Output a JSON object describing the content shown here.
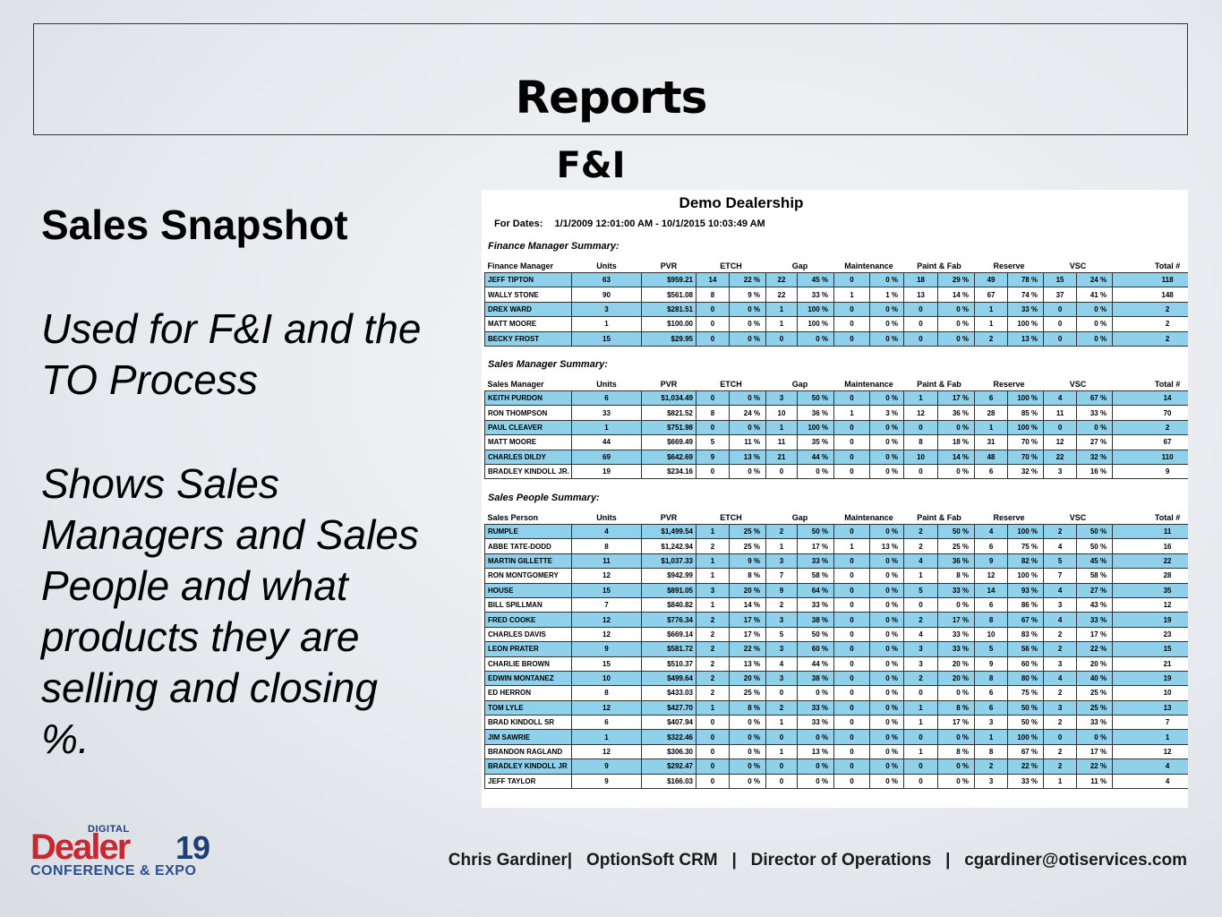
{
  "slide": {
    "title": "Reports",
    "subtitle": "F&I",
    "heading": "Sales Snapshot",
    "para1": "Used for F&I and the TO Process",
    "para2": "Shows Sales Managers and Sales People and what products they are selling and closing %.",
    "footer": "Chris Gardiner|   OptionSoft CRM   |   Director of Operations   |   cgardiner@otiservices.com"
  },
  "logo": {
    "digital": "DIGITAL",
    "dealer": "Dealer",
    "number": "19",
    "conference": "CONFERENCE & EXPO"
  },
  "report": {
    "title": "Demo Dealership",
    "dates_label": "For Dates:",
    "dates_value": "1/1/2009 12:01:00 AM - 10/1/2015 10:03:49 AM",
    "columns": [
      "Units",
      "PVR",
      "ETCH",
      "Gap",
      "Maintenance",
      "Paint & Fab",
      "Reserve",
      "VSC",
      "Total #"
    ],
    "sections": [
      {
        "title": "Finance Manager Summary:",
        "first_col": "Finance Manager",
        "rows": [
          [
            "JEFF TIPTON",
            "63",
            "$959.21",
            "14",
            "22 %",
            "22",
            "45 %",
            "0",
            "0 %",
            "18",
            "29 %",
            "49",
            "78 %",
            "15",
            "24 %",
            "118"
          ],
          [
            "WALLY STONE",
            "90",
            "$561.08",
            "8",
            "9 %",
            "22",
            "33 %",
            "1",
            "1 %",
            "13",
            "14 %",
            "67",
            "74 %",
            "37",
            "41 %",
            "148"
          ],
          [
            "DREX WARD",
            "3",
            "$281.51",
            "0",
            "0 %",
            "1",
            "100 %",
            "0",
            "0 %",
            "0",
            "0 %",
            "1",
            "33 %",
            "0",
            "0 %",
            "2"
          ],
          [
            "MATT MOORE",
            "1",
            "$100.00",
            "0",
            "0 %",
            "1",
            "100 %",
            "0",
            "0 %",
            "0",
            "0 %",
            "1",
            "100 %",
            "0",
            "0 %",
            "2"
          ],
          [
            "BECKY FROST",
            "15",
            "$29.95",
            "0",
            "0 %",
            "0",
            "0 %",
            "0",
            "0 %",
            "0",
            "0 %",
            "2",
            "13 %",
            "0",
            "0 %",
            "2"
          ]
        ]
      },
      {
        "title": "Sales Manager Summary:",
        "first_col": "Sales Manager",
        "rows": [
          [
            "KEITH PURDON",
            "6",
            "$1,034.49",
            "0",
            "0 %",
            "3",
            "50 %",
            "0",
            "0 %",
            "1",
            "17 %",
            "6",
            "100 %",
            "4",
            "67 %",
            "14"
          ],
          [
            "RON THOMPSON",
            "33",
            "$821.52",
            "8",
            "24 %",
            "10",
            "36 %",
            "1",
            "3 %",
            "12",
            "36 %",
            "28",
            "85 %",
            "11",
            "33 %",
            "70"
          ],
          [
            "PAUL CLEAVER",
            "1",
            "$751.98",
            "0",
            "0 %",
            "1",
            "100 %",
            "0",
            "0 %",
            "0",
            "0 %",
            "1",
            "100 %",
            "0",
            "0 %",
            "2"
          ],
          [
            "MATT MOORE",
            "44",
            "$669.49",
            "5",
            "11 %",
            "11",
            "35 %",
            "0",
            "0 %",
            "8",
            "18 %",
            "31",
            "70 %",
            "12",
            "27 %",
            "67"
          ],
          [
            "CHARLES DILDY",
            "69",
            "$642.69",
            "9",
            "13 %",
            "21",
            "44 %",
            "0",
            "0 %",
            "10",
            "14 %",
            "48",
            "70 %",
            "22",
            "32 %",
            "110"
          ],
          [
            "BRADLEY KINDOLL JR.",
            "19",
            "$234.16",
            "0",
            "0 %",
            "0",
            "0 %",
            "0",
            "0 %",
            "0",
            "0 %",
            "6",
            "32 %",
            "3",
            "16 %",
            "9"
          ]
        ]
      },
      {
        "title": "Sales People Summary:",
        "first_col": "Sales Person",
        "rows": [
          [
            "RUMPLE",
            "4",
            "$1,499.54",
            "1",
            "25 %",
            "2",
            "50 %",
            "0",
            "0 %",
            "2",
            "50 %",
            "4",
            "100 %",
            "2",
            "50 %",
            "11"
          ],
          [
            "ABBE TATE-DODD",
            "8",
            "$1,242.94",
            "2",
            "25 %",
            "1",
            "17 %",
            "1",
            "13 %",
            "2",
            "25 %",
            "6",
            "75 %",
            "4",
            "50 %",
            "16"
          ],
          [
            "MARTIN GILLETTE",
            "11",
            "$1,037.33",
            "1",
            "9 %",
            "3",
            "33 %",
            "0",
            "0 %",
            "4",
            "36 %",
            "9",
            "82 %",
            "5",
            "45 %",
            "22"
          ],
          [
            "RON MONTGOMERY",
            "12",
            "$942.99",
            "1",
            "8 %",
            "7",
            "58 %",
            "0",
            "0 %",
            "1",
            "8 %",
            "12",
            "100 %",
            "7",
            "58 %",
            "28"
          ],
          [
            "HOUSE",
            "15",
            "$891.05",
            "3",
            "20 %",
            "9",
            "64 %",
            "0",
            "0 %",
            "5",
            "33 %",
            "14",
            "93 %",
            "4",
            "27 %",
            "35"
          ],
          [
            "BILL SPILLMAN",
            "7",
            "$840.82",
            "1",
            "14 %",
            "2",
            "33 %",
            "0",
            "0 %",
            "0",
            "0 %",
            "6",
            "86 %",
            "3",
            "43 %",
            "12"
          ],
          [
            "FRED COOKE",
            "12",
            "$776.34",
            "2",
            "17 %",
            "3",
            "38 %",
            "0",
            "0 %",
            "2",
            "17 %",
            "8",
            "67 %",
            "4",
            "33 %",
            "19"
          ],
          [
            "CHARLES DAVIS",
            "12",
            "$669.14",
            "2",
            "17 %",
            "5",
            "50 %",
            "0",
            "0 %",
            "4",
            "33 %",
            "10",
            "83 %",
            "2",
            "17 %",
            "23"
          ],
          [
            "LEON PRATER",
            "9",
            "$581.72",
            "2",
            "22 %",
            "3",
            "60 %",
            "0",
            "0 %",
            "3",
            "33 %",
            "5",
            "56 %",
            "2",
            "22 %",
            "15"
          ],
          [
            "CHARLIE BROWN",
            "15",
            "$510.37",
            "2",
            "13 %",
            "4",
            "44 %",
            "0",
            "0 %",
            "3",
            "20 %",
            "9",
            "60 %",
            "3",
            "20 %",
            "21"
          ],
          [
            "EDWIN MONTANEZ",
            "10",
            "$499.64",
            "2",
            "20 %",
            "3",
            "38 %",
            "0",
            "0 %",
            "2",
            "20 %",
            "8",
            "80 %",
            "4",
            "40 %",
            "19"
          ],
          [
            "ED HERRON",
            "8",
            "$433.03",
            "2",
            "25 %",
            "0",
            "0 %",
            "0",
            "0 %",
            "0",
            "0 %",
            "6",
            "75 %",
            "2",
            "25 %",
            "10"
          ],
          [
            "TOM LYLE",
            "12",
            "$427.70",
            "1",
            "8 %",
            "2",
            "33 %",
            "0",
            "0 %",
            "1",
            "8 %",
            "6",
            "50 %",
            "3",
            "25 %",
            "13"
          ],
          [
            "BRAD KINDOLL SR",
            "6",
            "$407.94",
            "0",
            "0 %",
            "1",
            "33 %",
            "0",
            "0 %",
            "1",
            "17 %",
            "3",
            "50 %",
            "2",
            "33 %",
            "7"
          ],
          [
            "JIM SAWRIE",
            "1",
            "$322.46",
            "0",
            "0 %",
            "0",
            "0 %",
            "0",
            "0 %",
            "0",
            "0 %",
            "1",
            "100 %",
            "0",
            "0 %",
            "1"
          ],
          [
            "BRANDON RAGLAND",
            "12",
            "$306.30",
            "0",
            "0 %",
            "1",
            "13 %",
            "0",
            "0 %",
            "1",
            "8 %",
            "8",
            "67 %",
            "2",
            "17 %",
            "12"
          ],
          [
            "BRADLEY KINDOLL JR",
            "9",
            "$292.47",
            "0",
            "0 %",
            "0",
            "0 %",
            "0",
            "0 %",
            "0",
            "0 %",
            "2",
            "22 %",
            "2",
            "22 %",
            "4"
          ],
          [
            "JEFF TAYLOR",
            "9",
            "$166.03",
            "0",
            "0 %",
            "0",
            "0 %",
            "0",
            "0 %",
            "0",
            "0 %",
            "3",
            "33 %",
            "1",
            "11 %",
            "4"
          ]
        ]
      }
    ]
  }
}
